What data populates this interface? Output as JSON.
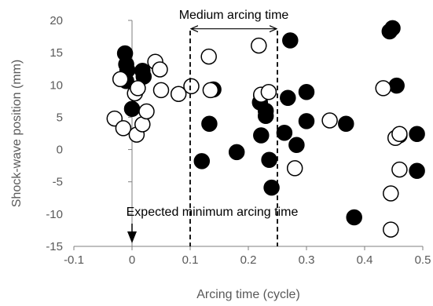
{
  "chart_data": {
    "type": "scatter",
    "title": "",
    "xlabel": "Arcing time (cycle)",
    "ylabel": "Shock-wave position (mm)",
    "xlim": [
      -0.1,
      0.5
    ],
    "ylim": [
      -15,
      20
    ],
    "x_ticks": [
      "-0.1",
      "0",
      "0.1",
      "0.2",
      "0.3",
      "0.4",
      "0.5"
    ],
    "y_ticks": [
      "-15",
      "-10",
      "-5",
      "0",
      "5",
      "10",
      "15",
      "20"
    ],
    "x_tick_values": [
      -0.1,
      0,
      0.1,
      0.2,
      0.3,
      0.4,
      0.5
    ],
    "y_tick_values": [
      -15,
      -10,
      -5,
      0,
      5,
      10,
      15,
      20
    ],
    "grid": false,
    "legend": "none",
    "series": [
      {
        "marker": "filled-circle",
        "color": "#000000",
        "points": [
          [
            -0.012,
            14.9
          ],
          [
            -0.01,
            13.2
          ],
          [
            -0.008,
            12.3
          ],
          [
            0.018,
            12.2
          ],
          [
            0.02,
            11.3
          ],
          [
            -0.01,
            10.6
          ],
          [
            0.0,
            6.3
          ],
          [
            0.14,
            9.3
          ],
          [
            0.133,
            4.0
          ],
          [
            0.12,
            -1.8
          ],
          [
            0.18,
            -0.4
          ],
          [
            0.222,
            2.2
          ],
          [
            0.22,
            7.3
          ],
          [
            0.222,
            8.4
          ],
          [
            0.23,
            6.0
          ],
          [
            0.23,
            5.2
          ],
          [
            0.236,
            -1.6
          ],
          [
            0.24,
            -5.9
          ],
          [
            0.262,
            2.6
          ],
          [
            0.268,
            8.0
          ],
          [
            0.272,
            16.9
          ],
          [
            0.283,
            0.7
          ],
          [
            0.3,
            8.9
          ],
          [
            0.3,
            4.4
          ],
          [
            0.368,
            4.0
          ],
          [
            0.382,
            -10.5
          ],
          [
            0.443,
            18.3
          ],
          [
            0.448,
            18.8
          ],
          [
            0.455,
            9.9
          ],
          [
            0.46,
            2.2
          ],
          [
            0.49,
            2.4
          ],
          [
            0.49,
            -3.3
          ]
        ]
      },
      {
        "marker": "open-circle",
        "color": "#000000",
        "points": [
          [
            -0.03,
            4.8
          ],
          [
            -0.02,
            10.9
          ],
          [
            -0.015,
            3.3
          ],
          [
            0.005,
            8.7
          ],
          [
            0.008,
            2.3
          ],
          [
            0.01,
            9.5
          ],
          [
            0.018,
            3.9
          ],
          [
            0.025,
            5.9
          ],
          [
            0.04,
            13.6
          ],
          [
            0.048,
            12.4
          ],
          [
            0.05,
            9.2
          ],
          [
            0.08,
            8.6
          ],
          [
            0.102,
            9.8
          ],
          [
            0.132,
            14.4
          ],
          [
            0.135,
            9.2
          ],
          [
            0.218,
            16.1
          ],
          [
            0.222,
            8.5
          ],
          [
            0.235,
            8.9
          ],
          [
            0.28,
            -2.9
          ],
          [
            0.34,
            4.5
          ],
          [
            0.432,
            9.5
          ],
          [
            0.445,
            -6.8
          ],
          [
            0.445,
            -12.4
          ],
          [
            0.453,
            1.8
          ],
          [
            0.46,
            2.4
          ],
          [
            0.46,
            -3.1
          ]
        ]
      }
    ],
    "annotations": {
      "medium_label": "Medium arcing time",
      "expected_label": "Expected minimum arcing time",
      "medium_range_x": [
        0.1,
        0.25
      ],
      "medium_arrow_y": 18.7,
      "expected_arrow_x": 0.0
    }
  }
}
